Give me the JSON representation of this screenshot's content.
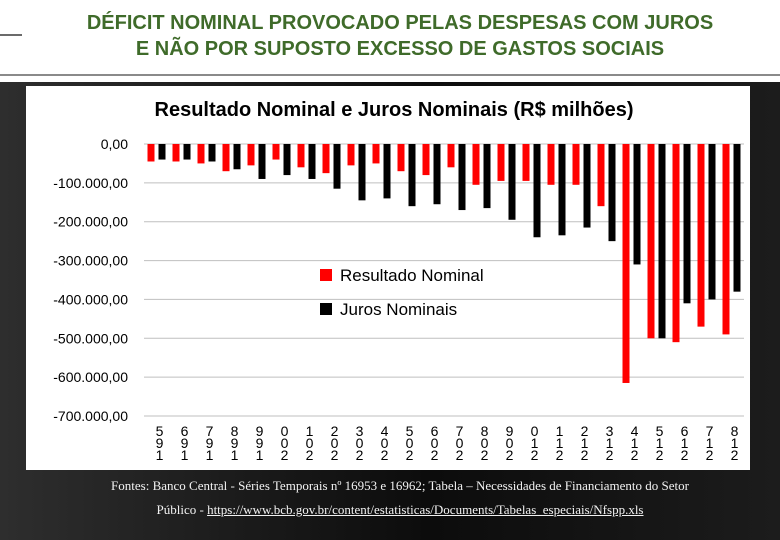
{
  "slide": {
    "title_line1": "DÉFICIT NOMINAL PROVOCADO PELAS DESPESAS COM JUROS",
    "title_line2": "E NÃO POR SUPOSTO EXCESSO DE GASTOS SOCIAIS",
    "footer_line1": "Fontes: Banco Central - Séries Temporais nº 16953 e 16962;  Tabela – Necessidades de Financiamento do Setor",
    "footer_prefix": "Público - ",
    "footer_link": "https://www.bcb.gov.br/content/estatisticas/Documents/Tabelas_especiais/Nfspp.xls"
  },
  "chart_data": {
    "type": "bar",
    "title": "Resultado Nominal e Juros Nominais (R$ milhões)",
    "xlabel": "",
    "ylabel": "",
    "ylim": [
      -700000,
      0
    ],
    "yticks": [
      0,
      -100000,
      -200000,
      -300000,
      -400000,
      -500000,
      -600000,
      -700000
    ],
    "ytick_labels": [
      "0,00",
      "-100.000,00",
      "-200.000,00",
      "-300.000,00",
      "-400.000,00",
      "-500.000,00",
      "-600.000,00",
      "-700.000,00"
    ],
    "categories": [
      "1995",
      "1996",
      "1997",
      "1998",
      "1999",
      "2000",
      "2001",
      "2002",
      "2003",
      "2004",
      "2005",
      "2006",
      "2007",
      "2008",
      "2009",
      "2010",
      "2011",
      "2012",
      "2013",
      "2014",
      "2015",
      "2016",
      "2017",
      "2018"
    ],
    "category_display": [
      "5\n9\n1",
      "6\n9\n1",
      "7\n9\n1",
      "8\n9\n1",
      "9\n9\n1",
      "0\n0\n2",
      "1\n0\n2",
      "2\n0\n2",
      "3\n0\n2",
      "4\n0\n2",
      "5\n0\n2",
      "6\n0\n2",
      "7\n0\n2",
      "8\n0\n2",
      "9\n0\n2",
      "0\n1\n2",
      "1\n1\n2",
      "2\n1\n2",
      "3\n1\n2",
      "4\n1\n2",
      "5\n1\n2",
      "6\n1\n2",
      "7\n1\n2",
      "8\n1\n2"
    ],
    "series": [
      {
        "name": "Resultado Nominal",
        "color": "#ff0000",
        "values": [
          -45000,
          -45000,
          -50000,
          -70000,
          -55000,
          -40000,
          -60000,
          -75000,
          -55000,
          -50000,
          -70000,
          -80000,
          -60000,
          -105000,
          -95000,
          -95000,
          -105000,
          -105000,
          -160000,
          -615000,
          -500000,
          -510000,
          -470000,
          -490000
        ]
      },
      {
        "name": "Juros Nominais",
        "color": "#000000",
        "values": [
          -40000,
          -40000,
          -45000,
          -65000,
          -90000,
          -80000,
          -90000,
          -115000,
          -145000,
          -140000,
          -160000,
          -155000,
          -170000,
          -165000,
          -195000,
          -240000,
          -235000,
          -215000,
          -250000,
          -310000,
          -500000,
          -410000,
          -400000,
          -380000
        ]
      }
    ],
    "legend": {
      "position": "center-right",
      "entries": [
        "Resultado Nominal",
        "Juros Nominais"
      ]
    }
  }
}
